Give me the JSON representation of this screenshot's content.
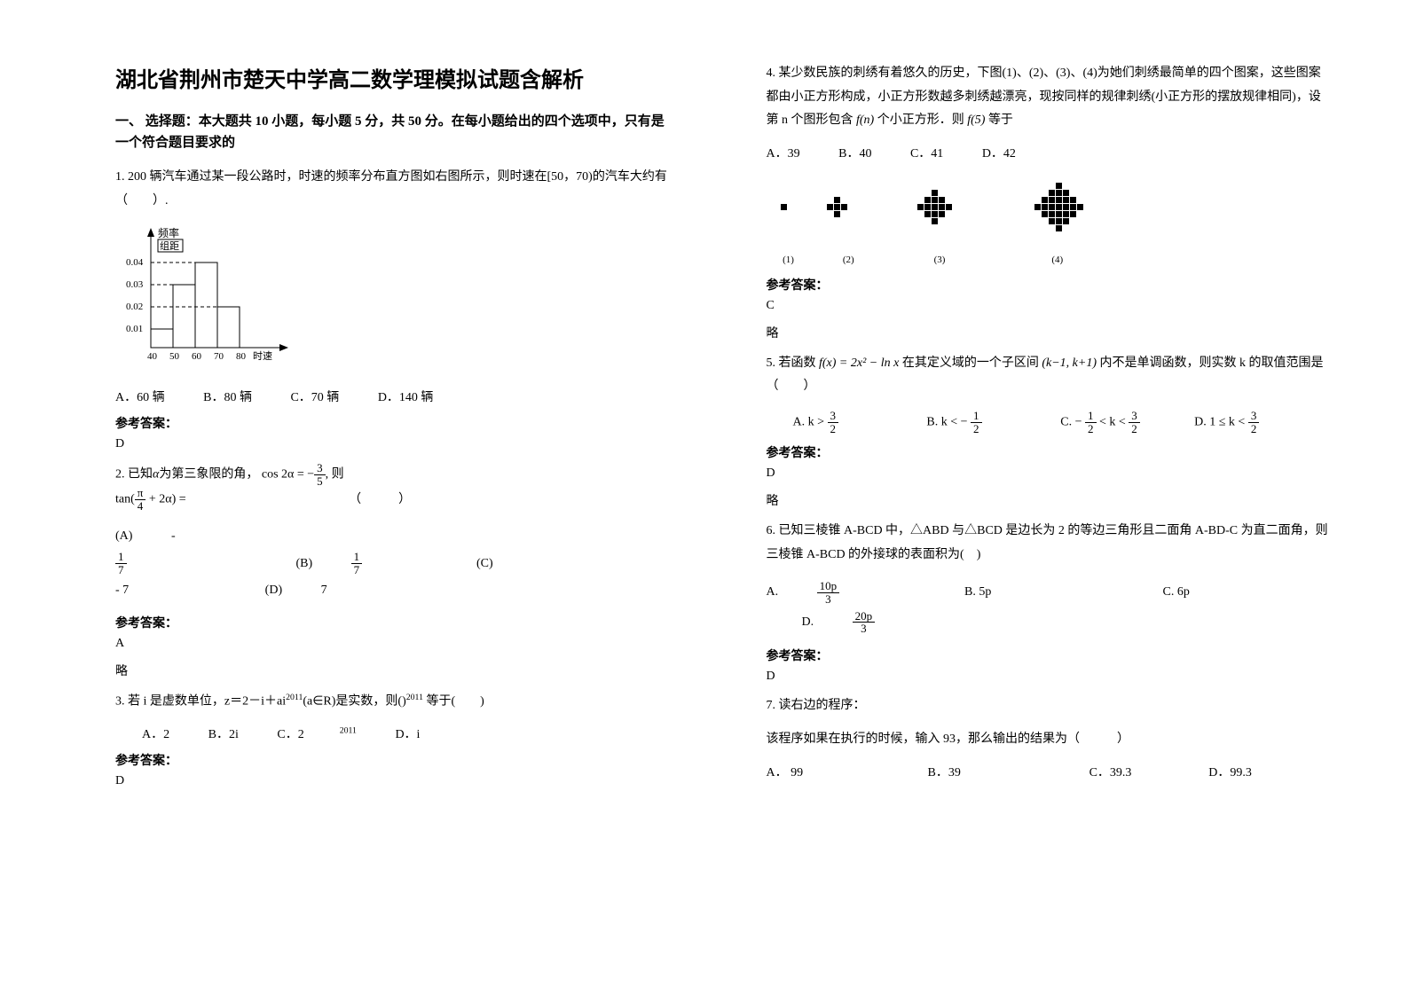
{
  "title": "湖北省荆州市楚天中学高二数学理模拟试题含解析",
  "section1": "一、 选择题：本大题共 10 小题，每小题 5 分，共 50 分。在每小题给出的四个选项中，只有是一个符合题目要求的",
  "q1": {
    "stem": "1. 200 辆汽车通过某一段公路时，时速的频率分布直方图如右图所示，则时速在[50，70)的汽车大约有（　　）.",
    "hist": {
      "y_label_top": "频率",
      "y_label_sub": "组距",
      "y_ticks": [
        "0.04",
        "0.03",
        "0.02",
        "0.01"
      ],
      "x_ticks": [
        "40",
        "50",
        "60",
        "70",
        "80"
      ],
      "x_label": "时速",
      "bars": [
        0.01,
        0.03,
        0.04,
        0.02
      ],
      "bar_color": "#ffffff",
      "border_color": "#000000",
      "dash_color": "#000000"
    },
    "opts": {
      "A": "A．60 辆",
      "B": "B．80 辆",
      "C": "C．70 辆",
      "D": "D．140 辆"
    },
    "ans_label": "参考答案：",
    "ans": "D"
  },
  "q2": {
    "prefix": "2. 已知",
    "alpha": "α",
    "mid1": "为第三象限的角，",
    "cos_lhs": "cos 2α = ",
    "cos_frac_n": "3",
    "cos_frac_d": "5",
    "mid2": ", 则",
    "tan_expr_pre": "tan(",
    "tan_frac_n": "π",
    "tan_frac_d": "4",
    "tan_expr_post": " + 2α) = ",
    "paren": "（　　　）",
    "opts": {
      "A_pre": "(A) ",
      "A_n": "1",
      "A_d": "7",
      "A_sign": "- ",
      "B_pre": "(B) ",
      "B_n": "1",
      "B_d": "7",
      "C": "(C)",
      "C_val": "- 7",
      "D_pre": "(D) ",
      "D_val": "7"
    },
    "ans_label": "参考答案：",
    "ans": "A",
    "note": "略"
  },
  "q3": {
    "stem": "3. 若 i 是虚数单位，z＝2－i＋ai",
    "sup1": "2011",
    "stem2": "(a∈R)是实数，则()",
    "sup2": "2011",
    "stem3": " 等于(　　)",
    "opts": {
      "A": "A．2",
      "B": "B．2i",
      "C_pre": "C．2",
      "C_sup": "2011",
      "D": "D．i"
    },
    "ans_label": "参考答案：",
    "ans": "D"
  },
  "q4": {
    "stem": "4. 某少数民族的刺绣有着悠久的历史，下图(1)、(2)、(3)、(4)为她们刺绣最简单的四个图案，这些图案都由小正方形构成，小正方形数越多刺绣越漂亮，现按同样的规律刺绣(小正方形的摆放规律相同)，设第 n 个图形包含",
    "fn": " f(n) ",
    "stem2": "个小正方形．则",
    "f5": " f(5) ",
    "stem3": "等于",
    "opts": {
      "A": "A．39",
      "B": "B．40",
      "C": "C．41",
      "D": "D．42"
    },
    "patterns": {
      "color": "#000000",
      "cell": 8,
      "labels": [
        "(1)",
        "(2)",
        "(3)",
        "(4)"
      ]
    },
    "ans_label": "参考答案：",
    "ans": "C",
    "note": "略"
  },
  "q5": {
    "stem_pre": "5. 若函数 ",
    "fx": "f(x) = 2x² − ln x",
    "stem_mid": " 在其定义域的一个子区间 ",
    "interval": "(k−1, k+1)",
    "stem_post": " 内不是单调函数，则实数 k 的取值范围是（　　）",
    "opts": {
      "A_pre": "A.",
      "A_expr_l": "k > ",
      "A_n": "3",
      "A_d": "2",
      "B_pre": "B.",
      "B_expr_l": "k < − ",
      "B_n": "1",
      "B_d": "2",
      "C_pre": "C.",
      "C_l_sign": "− ",
      "C_l_n": "1",
      "C_l_d": "2",
      "C_mid": " < k < ",
      "C_r_n": "3",
      "C_r_d": "2",
      "D_pre": "D.",
      "D_l": "1 ≤ k < ",
      "D_n": "3",
      "D_d": "2"
    },
    "ans_label": "参考答案：",
    "ans": "D",
    "note": "略"
  },
  "q6": {
    "stem": "6. 已知三棱锥 A-BCD 中，△ABD 与△BCD 是边长为 2 的等边三角形且二面角 A-BD-C 为直二面角，则三棱锥 A-BCD 的外接球的表面积为(　)",
    "opts": {
      "A_pre": "A. ",
      "A_n": "10p",
      "A_d": "3",
      "B": "B. 5p",
      "C": "C. 6p",
      "D_pre": "D. ",
      "D_n": "20p",
      "D_d": "3"
    },
    "ans_label": "参考答案：",
    "ans": "D"
  },
  "q7": {
    "stem": "7. 读右边的程序：",
    "stem2": "该程序如果在执行的时候，输入 93，那么输出的结果为（　　　）",
    "opts": {
      "A": "A． 99",
      "B": "B．39",
      "C": "C．39.3",
      "D": "D．99.3"
    }
  },
  "colors": {
    "text": "#000000",
    "bg": "#ffffff"
  }
}
